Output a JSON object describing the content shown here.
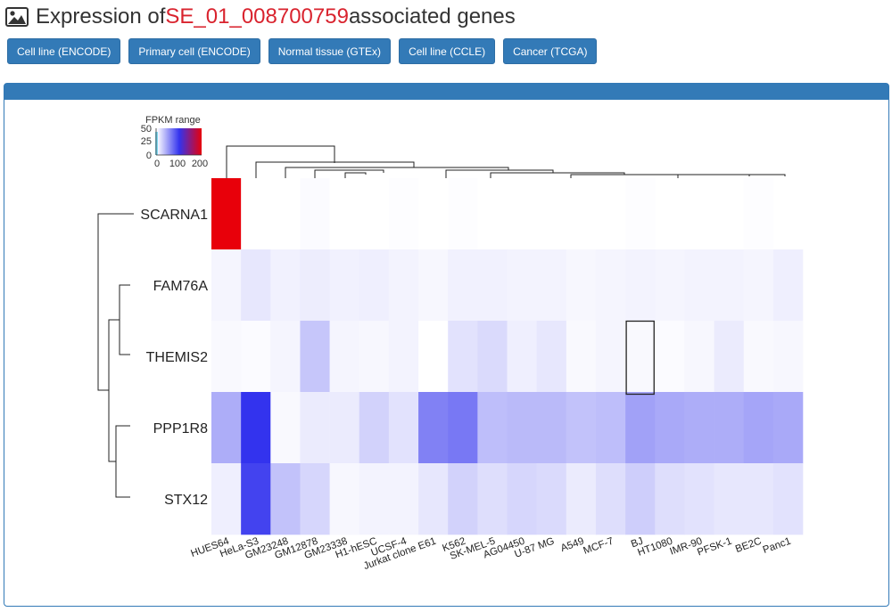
{
  "header": {
    "icon": "image-icon",
    "title_prefix": "Expression of ",
    "gene_id": "SE_01_008700759",
    "title_suffix": " associated genes",
    "gene_color": "#d9232e"
  },
  "tabs": [
    {
      "label": "Cell line (ENCODE)"
    },
    {
      "label": "Primary cell (ENCODE)"
    },
    {
      "label": "Normal tissue (GTEx)"
    },
    {
      "label": "Cell line (CCLE)"
    },
    {
      "label": "Cancer (TCGA)"
    }
  ],
  "colors": {
    "accent": "#337ab7",
    "high": "#e8000a",
    "mid": "#3333ee",
    "low": "#ffffff"
  },
  "legend": {
    "title": "FPKM range",
    "hist_ticks": [
      "50",
      "25",
      "0"
    ],
    "color_ticks": [
      "0",
      "100",
      "200"
    ]
  },
  "chart_data": {
    "type": "heatmap",
    "rows": [
      "SCARNA1",
      "FAM76A",
      "THEMIS2",
      "PPP1R8",
      "STX12"
    ],
    "columns": [
      "HUES64",
      "HeLa-S3",
      "GM23248",
      "GM12878",
      "GM23338",
      "H1-hESC",
      "UCSF-4",
      "Jurkat clone E61",
      "K562",
      "SK-MEL-5",
      "AG04450",
      "U-87 MG",
      "A549",
      "MCF-7",
      "BJ",
      "HT1080",
      "IMR-90",
      "PFSK-1",
      "BE2C",
      "Panc1"
    ],
    "values": [
      [
        200,
        0,
        0,
        2,
        0,
        0,
        1,
        0,
        1,
        0,
        0,
        0,
        0,
        0,
        1,
        0,
        0,
        0,
        1,
        0
      ],
      [
        5,
        12,
        7,
        9,
        7,
        8,
        6,
        4,
        7,
        7,
        6,
        6,
        4,
        5,
        6,
        5,
        6,
        6,
        5,
        8
      ],
      [
        3,
        2,
        5,
        28,
        5,
        4,
        6,
        0,
        14,
        18,
        8,
        12,
        3,
        5,
        3,
        2,
        4,
        10,
        3,
        4
      ],
      [
        40,
        100,
        3,
        10,
        10,
        22,
        14,
        62,
        66,
        32,
        34,
        34,
        30,
        32,
        46,
        42,
        40,
        40,
        44,
        42
      ],
      [
        8,
        92,
        30,
        20,
        4,
        6,
        6,
        12,
        22,
        16,
        20,
        18,
        10,
        16,
        24,
        16,
        14,
        12,
        12,
        14
      ]
    ],
    "color_range": [
      0,
      200
    ],
    "highlight": {
      "row": "THEMIS2",
      "column": "BJ"
    }
  }
}
